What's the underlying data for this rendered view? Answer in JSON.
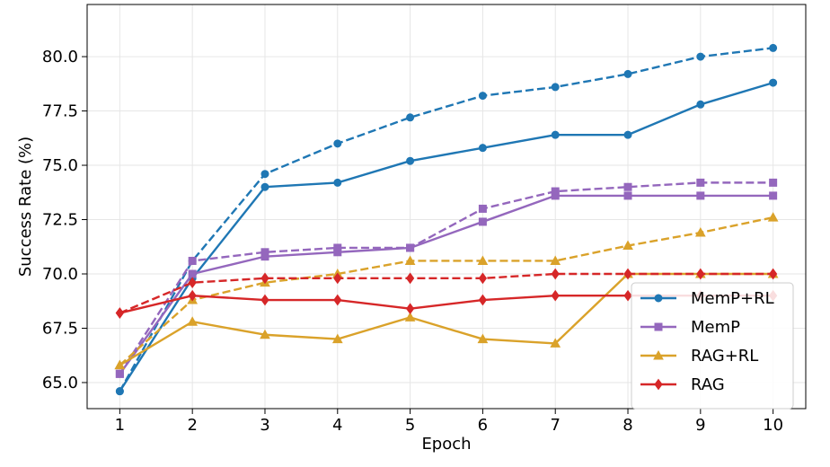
{
  "chart_data": {
    "type": "line",
    "xlabel": "Epoch",
    "ylabel": "Success Rate (%)",
    "x": [
      1,
      2,
      3,
      4,
      5,
      6,
      7,
      8,
      9,
      10
    ],
    "xlim": [
      0.55,
      10.45
    ],
    "ylim": [
      63.8,
      82.4
    ],
    "yticks": [
      "65.0",
      "67.5",
      "70.0",
      "72.5",
      "75.0",
      "77.5",
      "80.0"
    ],
    "grid": true,
    "legend_position": "lower-right",
    "series": [
      {
        "name": "MemP+RL",
        "color": "#1f77b4",
        "marker": "circle",
        "style": "solid",
        "values": [
          64.6,
          69.8,
          74.0,
          74.2,
          75.2,
          75.8,
          76.4,
          76.4,
          77.8,
          78.8
        ]
      },
      {
        "name": "",
        "color": "#1f77b4",
        "marker": "circle",
        "style": "dashed",
        "values": [
          64.6,
          70.6,
          74.6,
          76.0,
          77.2,
          78.2,
          78.6,
          79.2,
          80.0,
          80.4
        ]
      },
      {
        "name": "MemP",
        "color": "#9467bd",
        "marker": "square",
        "style": "solid",
        "values": [
          65.4,
          70.0,
          70.8,
          71.0,
          71.2,
          72.4,
          73.6,
          73.6,
          73.6,
          73.6
        ]
      },
      {
        "name": "",
        "color": "#9467bd",
        "marker": "square",
        "style": "dashed",
        "values": [
          65.4,
          70.6,
          71.0,
          71.2,
          71.2,
          73.0,
          73.8,
          74.0,
          74.2,
          74.2
        ]
      },
      {
        "name": "RAG+RL",
        "color": "#daa22a",
        "marker": "triangle",
        "style": "solid",
        "values": [
          65.8,
          67.8,
          67.2,
          67.0,
          68.0,
          67.0,
          66.8,
          70.0,
          70.0,
          70.0
        ]
      },
      {
        "name": "",
        "color": "#daa22a",
        "marker": "triangle",
        "style": "dashed",
        "values": [
          65.8,
          68.8,
          69.6,
          70.0,
          70.6,
          70.6,
          70.6,
          71.3,
          71.9,
          72.6
        ]
      },
      {
        "name": "RAG",
        "color": "#d62728",
        "marker": "diamond",
        "style": "solid",
        "values": [
          68.2,
          69.0,
          68.8,
          68.8,
          68.4,
          68.8,
          69.0,
          69.0,
          69.0,
          69.0
        ]
      },
      {
        "name": "",
        "color": "#d62728",
        "marker": "diamond",
        "style": "dashed",
        "values": [
          68.2,
          69.6,
          69.8,
          69.8,
          69.8,
          69.8,
          70.0,
          70.0,
          70.0,
          70.0
        ]
      }
    ]
  }
}
